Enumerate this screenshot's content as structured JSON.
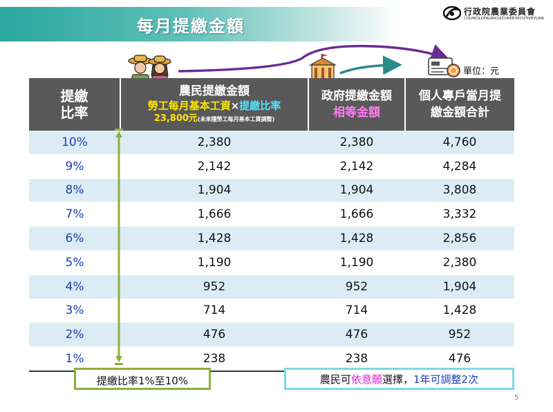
{
  "slide": {
    "title": "每月提繳金額",
    "logo_cn": "行政院農業委員會",
    "logo_en": "COUNCILOFAGRICULTUREEXECUTIVEYUAN",
    "unit": "單位：元",
    "page_number": "5"
  },
  "table": {
    "headers": {
      "rate": [
        "提繳",
        "比率"
      ],
      "farmer": {
        "line1": "農民提繳金額",
        "line2_a": "勞工每月基本工資",
        "line2_op": "×",
        "line2_b": "提繳比率",
        "line3_main": "23,800元",
        "line3_note": "(未來隨勞工每月基本工資調整)"
      },
      "gov": {
        "line1": "政府提繳金額",
        "line2": "相等金額"
      },
      "total": [
        "個人專戶當月提",
        "繳金額合計"
      ]
    },
    "rows": [
      {
        "rate": "10%",
        "farmer": "2,380",
        "gov": "2,380",
        "total": "4,760"
      },
      {
        "rate": "9%",
        "farmer": "2,142",
        "gov": "2,142",
        "total": "4,284"
      },
      {
        "rate": "8%",
        "farmer": "1,904",
        "gov": "1,904",
        "total": "3,808"
      },
      {
        "rate": "7%",
        "farmer": "1,666",
        "gov": "1,666",
        "total": "3,332"
      },
      {
        "rate": "6%",
        "farmer": "1,428",
        "gov": "1,428",
        "total": "2,856"
      },
      {
        "rate": "5%",
        "farmer": "1,190",
        "gov": "1,190",
        "total": "2,380"
      },
      {
        "rate": "4%",
        "farmer": "952",
        "gov": "952",
        "total": "1,904"
      },
      {
        "rate": "3%",
        "farmer": "714",
        "gov": "714",
        "total": "1,428"
      },
      {
        "rate": "2%",
        "farmer": "476",
        "gov": "476",
        "total": "952"
      },
      {
        "rate": "1%",
        "farmer": "238",
        "gov": "238",
        "total": "476"
      }
    ]
  },
  "notes": {
    "range": "提繳比率1%至10%",
    "choice_a": "農民可",
    "choice_b": "依意願",
    "choice_c": "選擇，",
    "choice_d": "1年可調整2次"
  },
  "colors": {
    "title_bar": "#2aa7a0",
    "header_bg": "#595959",
    "row_stripe": "#dcecf4",
    "range_border": "#8fae3a",
    "choice_border": "#7fd8e3",
    "arrow_purple": "#6a2c91",
    "arrow_teal": "#2b8a8a"
  },
  "icons": [
    "farmers-icon",
    "government-building-icon",
    "bank-account-icon",
    "double-arrow-icon"
  ]
}
